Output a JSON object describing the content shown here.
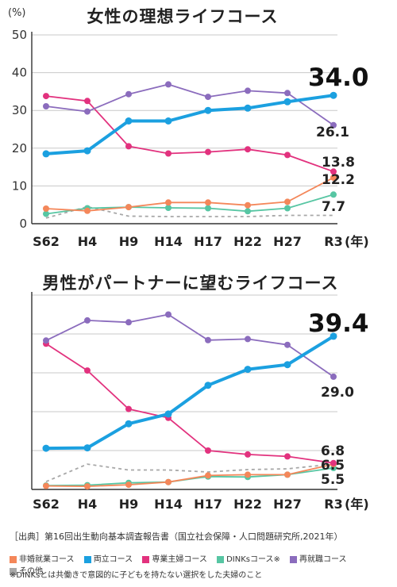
{
  "colors": {
    "hikon": "#f4875a",
    "ryoritsu": "#1ba0e0",
    "sengyo": "#e2327e",
    "dinks": "#57c6a3",
    "saishushoku": "#8b6cbd",
    "sonota": "#a8a8a8"
  },
  "chart_data": [
    {
      "type": "line",
      "title": "女性の理想ライフコース",
      "unit_label": "(%)",
      "year_label": "(年)",
      "categories": [
        "S62",
        "H4",
        "H9",
        "H14",
        "H17",
        "H22",
        "H27",
        "R3"
      ],
      "ylim": [
        0,
        50
      ],
      "yticks": [
        "0",
        "10",
        "20",
        "30",
        "40",
        "50"
      ],
      "grid": true,
      "series": [
        {
          "key": "hikon",
          "values": [
            4.0,
            3.4,
            4.4,
            5.6,
            5.6,
            4.9,
            5.8,
            12.2
          ]
        },
        {
          "key": "ryoritsu",
          "values": [
            18.5,
            19.3,
            27.2,
            27.2,
            30.0,
            30.6,
            32.3,
            34.0
          ]
        },
        {
          "key": "sengyo",
          "values": [
            33.8,
            32.5,
            20.5,
            18.6,
            19.0,
            19.7,
            18.2,
            13.8
          ]
        },
        {
          "key": "dinks",
          "values": [
            2.6,
            4.1,
            4.4,
            4.2,
            4.1,
            3.3,
            4.1,
            7.7
          ]
        },
        {
          "key": "saishushoku",
          "values": [
            31.1,
            29.7,
            34.3,
            36.9,
            33.6,
            35.2,
            34.6,
            26.1
          ]
        },
        {
          "key": "sonota",
          "values": [
            1.5,
            4.5,
            2.0,
            1.9,
            1.9,
            1.9,
            2.2,
            2.2
          ]
        }
      ],
      "big_label": "34.0",
      "end_labels": [
        "26.1",
        "13.8",
        "12.2",
        "7.7"
      ]
    },
    {
      "type": "line",
      "title": "男性がパートナーに望むライフコース",
      "year_label": "(年)",
      "categories": [
        "S62",
        "H4",
        "H9",
        "H14",
        "H17",
        "H22",
        "H27",
        "R3"
      ],
      "ylim": [
        0,
        50
      ],
      "grid": true,
      "series": [
        {
          "key": "hikon",
          "values": [
            0.9,
            0.8,
            1.2,
            1.9,
            3.6,
            3.8,
            3.8,
            6.5
          ]
        },
        {
          "key": "ryoritsu",
          "values": [
            10.6,
            10.7,
            16.9,
            19.4,
            26.8,
            30.9,
            32.1,
            39.4
          ]
        },
        {
          "key": "sengyo",
          "values": [
            37.5,
            30.6,
            20.7,
            18.4,
            10.0,
            9.0,
            8.5,
            6.8
          ]
        },
        {
          "key": "dinks",
          "values": [
            1.0,
            1.1,
            1.7,
            1.9,
            3.3,
            3.2,
            3.8,
            5.5
          ]
        },
        {
          "key": "saishushoku",
          "values": [
            38.3,
            43.5,
            43.0,
            45.0,
            38.4,
            38.7,
            37.2,
            29.0
          ]
        },
        {
          "key": "sonota",
          "values": [
            2.0,
            6.5,
            5.0,
            5.0,
            4.5,
            5.1,
            5.3,
            6.5
          ]
        }
      ],
      "big_label": "39.4",
      "end_labels": [
        "29.0",
        "6.8",
        "6.5",
        "5.5"
      ]
    }
  ],
  "source": "［出典］第16回出生動向基本調査報告書（国立社会保障・人口問題研究所,2021年）",
  "legend": [
    {
      "key": "hikon",
      "label": "非婚就業コース"
    },
    {
      "key": "ryoritsu",
      "label": "両立コース"
    },
    {
      "key": "sengyo",
      "label": "専業主婦コース"
    },
    {
      "key": "dinks",
      "label": "DINKsコース※"
    },
    {
      "key": "saishushoku",
      "label": "再就職コース"
    },
    {
      "key": "sonota",
      "label": "その他"
    }
  ],
  "note": "※DINKsとは共働きで意図的に子どもを持たない選択をした夫婦のこと"
}
